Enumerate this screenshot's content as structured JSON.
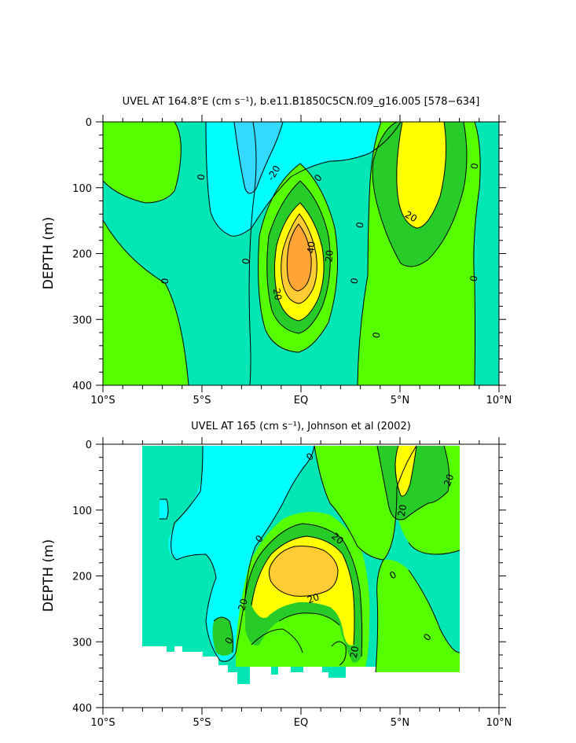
{
  "chart_data": [
    {
      "type": "contour",
      "title": "UVEL AT 164.8°E (cm s⁻¹), b.e11.B1850C5CN.f09_g16.005 [578−634]",
      "ylabel": "DEPTH (m)",
      "xlim": [
        -10,
        10
      ],
      "ylim": [
        400,
        0
      ],
      "x_ticks": [
        -10,
        -5,
        0,
        5,
        10
      ],
      "x_tick_labels": [
        "10°S",
        "5°S",
        "EQ",
        "5°N",
        "10°N"
      ],
      "y_ticks": [
        0,
        100,
        200,
        300,
        400
      ],
      "y_tick_labels": [
        "0",
        "100",
        "200",
        "300",
        "400"
      ],
      "contour_interval": 10,
      "contour_levels": [
        -20,
        -10,
        0,
        10,
        20,
        30,
        40,
        50
      ],
      "features": [
        {
          "kind": "max",
          "lat": 0,
          "depth": 190,
          "value": 50
        },
        {
          "kind": "max",
          "lat": 6,
          "depth": 60,
          "value": 20
        },
        {
          "kind": "max",
          "lat": -7.5,
          "depth": 50,
          "value": 10
        },
        {
          "kind": "min",
          "lat": -1.5,
          "depth": 10,
          "value": -20
        }
      ],
      "contour_labels": [
        "-20",
        "0",
        "0",
        "0",
        "0",
        "0",
        "0",
        "0",
        "0",
        "0",
        "20",
        "20",
        "20",
        "40"
      ]
    },
    {
      "type": "contour",
      "title": "UVEL AT 165 (cm s⁻¹), Johnson et al (2002)",
      "ylabel": "DEPTH (m)",
      "xlim": [
        -10,
        10
      ],
      "ylim": [
        400,
        0
      ],
      "x_ticks": [
        -10,
        -5,
        0,
        5,
        10
      ],
      "x_tick_labels": [
        "10°S",
        "5°S",
        "EQ",
        "5°N",
        "10°N"
      ],
      "y_ticks": [
        0,
        100,
        200,
        300,
        400
      ],
      "y_tick_labels": [
        "0",
        "100",
        "200",
        "300",
        "400"
      ],
      "contour_interval": 10,
      "contour_levels": [
        -20,
        -10,
        0,
        10,
        20,
        30,
        40
      ],
      "features": [
        {
          "kind": "max",
          "lat": 0,
          "depth": 190,
          "value": 40
        },
        {
          "kind": "max",
          "lat": 5,
          "depth": 70,
          "value": 20
        }
      ],
      "contour_labels": [
        "0",
        "0",
        "0",
        "0",
        "0",
        "20",
        "20",
        "20",
        "20",
        "20",
        "20"
      ]
    }
  ],
  "colors": {
    "cn20": "#33d9ff",
    "cn10": "#00ffff",
    "c0": "#00e6b4",
    "c10": "#55ff00",
    "c20": "#28cc28",
    "c30": "#ffff00",
    "c40": "#ffcc33",
    "c50": "#ffa533"
  }
}
